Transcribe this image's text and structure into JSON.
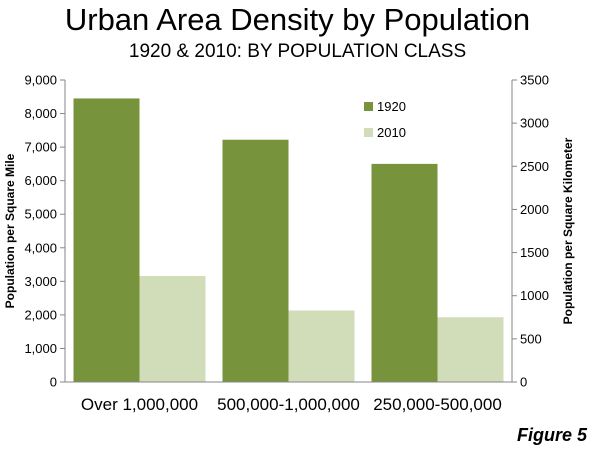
{
  "header": {
    "title": "Urban Area Density by Population",
    "subtitle": "1920 & 2010: BY POPULATION CLASS"
  },
  "footer": {
    "figure_label": "Figure 5"
  },
  "chart_data": {
    "type": "bar",
    "title": "Urban Area Density by Population",
    "subtitle": "1920 & 2010: BY POPULATION CLASS",
    "categories": [
      "Over 1,000,000",
      "500,000-1,000,000",
      "250,000-500,000"
    ],
    "series": [
      {
        "name": "1920",
        "values": [
          8450,
          7220,
          6500
        ],
        "color": "#77933c"
      },
      {
        "name": "2010",
        "values": [
          3160,
          2130,
          1930
        ],
        "color": "#d0ddb8"
      }
    ],
    "ylabel": "Population per Square Mile",
    "ylim": [
      0,
      9000
    ],
    "yticks": [
      0,
      1000,
      2000,
      3000,
      4000,
      5000,
      6000,
      7000,
      8000,
      9000
    ],
    "ytick_labels": [
      "0",
      "1,000",
      "2,000",
      "3,000",
      "4,000",
      "5,000",
      "6,000",
      "7,000",
      "8,000",
      "9,000"
    ],
    "y2label": "Population per Square Kilometer",
    "y2lim": [
      0,
      3500
    ],
    "y2ticks": [
      0,
      500,
      1000,
      1500,
      2000,
      2500,
      3000,
      3500
    ],
    "y2tick_labels": [
      "0",
      "500",
      "1000",
      "1500",
      "2000",
      "2500",
      "3000",
      "3500"
    ],
    "grid": false,
    "legend_position": "top-right"
  }
}
